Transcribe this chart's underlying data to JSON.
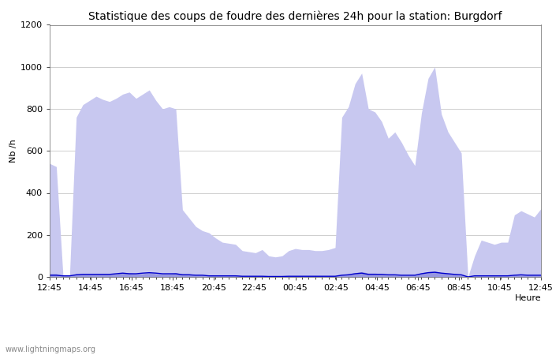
{
  "title": "Statistique des coups de foudre des dernières 24h pour la station: Burgdorf",
  "xlabel": "Heure",
  "ylabel": "Nb /h",
  "ylim": [
    0,
    1200
  ],
  "yticks": [
    0,
    200,
    400,
    600,
    800,
    1000,
    1200
  ],
  "xtick_labels": [
    "12:45",
    "14:45",
    "16:45",
    "18:45",
    "20:45",
    "22:45",
    "00:45",
    "02:45",
    "04:45",
    "06:45",
    "08:45",
    "10:45",
    "12:45"
  ],
  "watermark": "www.lightningmaps.org",
  "color_total": "#c8c8f0",
  "color_burgdorf": "#9898e0",
  "color_moyenne": "#0000cc",
  "total_foudre": [
    540,
    525,
    10,
    5,
    760,
    820,
    840,
    860,
    845,
    835,
    850,
    870,
    880,
    850,
    870,
    890,
    840,
    800,
    810,
    800,
    320,
    280,
    240,
    220,
    210,
    185,
    165,
    160,
    155,
    125,
    120,
    115,
    130,
    100,
    95,
    100,
    125,
    135,
    130,
    130,
    125,
    125,
    130,
    140,
    760,
    810,
    920,
    970,
    800,
    785,
    740,
    660,
    690,
    640,
    580,
    530,
    780,
    945,
    1000,
    775,
    690,
    640,
    590,
    0,
    100,
    175,
    165,
    155,
    165,
    165,
    295,
    315,
    300,
    285,
    325
  ],
  "foudre_burgdorf": [
    15,
    15,
    5,
    5,
    15,
    15,
    15,
    15,
    15,
    15,
    15,
    20,
    20,
    15,
    15,
    20,
    15,
    15,
    15,
    20,
    15,
    15,
    10,
    10,
    8,
    8,
    8,
    8,
    8,
    5,
    5,
    5,
    5,
    5,
    5,
    5,
    5,
    5,
    5,
    5,
    5,
    5,
    5,
    5,
    10,
    15,
    20,
    25,
    18,
    18,
    15,
    12,
    12,
    10,
    10,
    10,
    20,
    25,
    28,
    20,
    18,
    15,
    12,
    0,
    5,
    5,
    5,
    5,
    5,
    5,
    10,
    12,
    10,
    10,
    10
  ],
  "moyenne": [
    8,
    8,
    5,
    5,
    10,
    12,
    12,
    12,
    12,
    12,
    15,
    18,
    15,
    15,
    18,
    20,
    18,
    15,
    15,
    15,
    10,
    10,
    8,
    8,
    5,
    5,
    5,
    5,
    5,
    3,
    3,
    3,
    3,
    2,
    2,
    2,
    3,
    3,
    3,
    3,
    3,
    3,
    3,
    3,
    8,
    10,
    15,
    18,
    12,
    12,
    12,
    10,
    10,
    8,
    8,
    8,
    15,
    20,
    22,
    18,
    15,
    12,
    10,
    0,
    5,
    5,
    5,
    5,
    5,
    5,
    8,
    10,
    8,
    8,
    8
  ]
}
